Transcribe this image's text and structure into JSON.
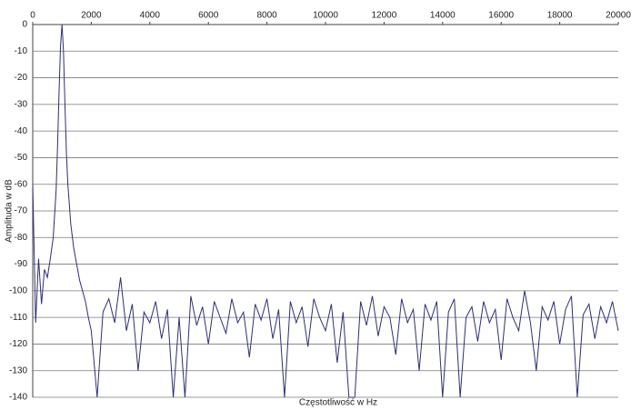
{
  "chart_data": {
    "type": "line",
    "x_label": "Częstotliwość w Hz",
    "y_label": "Amplituda w dB",
    "color": "#2e2e78",
    "grid": true,
    "xlim": [
      0,
      20000
    ],
    "ylim": [
      -140,
      0
    ],
    "xticks": [
      0,
      2000,
      4000,
      6000,
      8000,
      10000,
      12000,
      14000,
      16000,
      18000,
      20000
    ],
    "yticks": [
      0,
      -10,
      -20,
      -30,
      -40,
      -50,
      -60,
      -70,
      -80,
      -90,
      -100,
      -110,
      -120,
      -130,
      -140
    ],
    "x": [
      0,
      100,
      200,
      300,
      400,
      500,
      600,
      700,
      800,
      850,
      900,
      950,
      1000,
      1050,
      1100,
      1150,
      1200,
      1300,
      1400,
      1500,
      1600,
      1700,
      1800,
      1900,
      2000,
      2200,
      2400,
      2600,
      2800,
      3000,
      3200,
      3400,
      3600,
      3800,
      4000,
      4200,
      4400,
      4600,
      4800,
      5000,
      5200,
      5400,
      5600,
      5800,
      6000,
      6200,
      6400,
      6600,
      6800,
      7000,
      7200,
      7400,
      7600,
      7800,
      8000,
      8200,
      8400,
      8600,
      8800,
      9000,
      9200,
      9400,
      9600,
      9800,
      10000,
      10200,
      10400,
      10600,
      10800,
      11000,
      11200,
      11400,
      11600,
      11800,
      12000,
      12200,
      12400,
      12600,
      12800,
      13000,
      13200,
      13400,
      13600,
      13800,
      14000,
      14200,
      14400,
      14600,
      14800,
      15000,
      15200,
      15400,
      15600,
      15800,
      16000,
      16200,
      16400,
      16600,
      16800,
      17000,
      17200,
      17400,
      17600,
      17800,
      18000,
      18200,
      18400,
      18600,
      18800,
      19000,
      19200,
      19400,
      19600,
      19800,
      20000
    ],
    "values": [
      -60,
      -112,
      -88,
      -105,
      -92,
      -95,
      -88,
      -80,
      -62,
      -45,
      -25,
      -8,
      0,
      -10,
      -30,
      -48,
      -60,
      -75,
      -84,
      -90,
      -96,
      -100,
      -104,
      -110,
      -115,
      -140,
      -108,
      -103,
      -112,
      -95,
      -115,
      -105,
      -130,
      -108,
      -112,
      -104,
      -118,
      -107,
      -140,
      -110,
      -140,
      -102,
      -113,
      -106,
      -120,
      -104,
      -110,
      -116,
      -103,
      -112,
      -108,
      -125,
      -105,
      -111,
      -103,
      -118,
      -107,
      -140,
      -104,
      -112,
      -106,
      -121,
      -103,
      -110,
      -115,
      -105,
      -127,
      -108,
      -140,
      -140,
      -104,
      -113,
      -102,
      -117,
      -106,
      -110,
      -124,
      -103,
      -112,
      -107,
      -130,
      -105,
      -111,
      -104,
      -140,
      -108,
      -103,
      -140,
      -110,
      -106,
      -119,
      -104,
      -112,
      -107,
      -126,
      -103,
      -110,
      -115,
      -100,
      -112,
      -130,
      -106,
      -111,
      -104,
      -120,
      -107,
      -102,
      -140,
      -109,
      -105,
      -118,
      -106,
      -112,
      -104,
      -115
    ]
  }
}
